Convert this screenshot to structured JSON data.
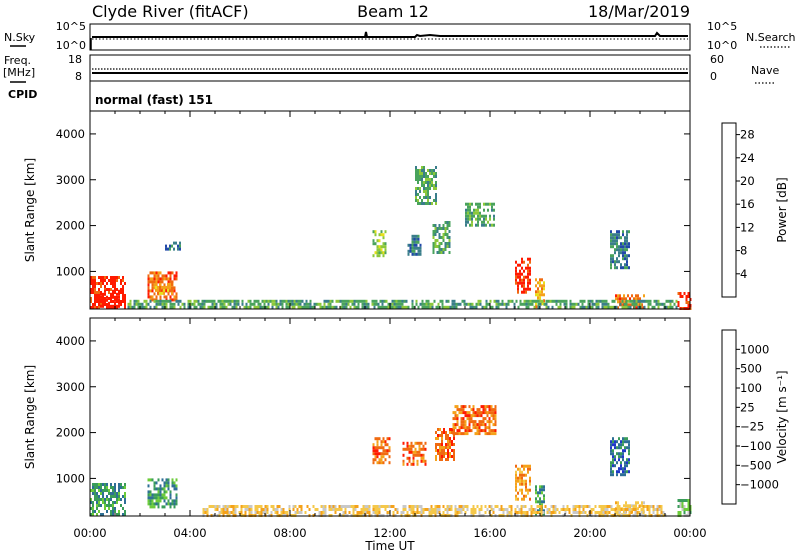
{
  "header": {
    "station": "Clyde River (fitACF)",
    "beam": "Beam 12",
    "date": "18/Mar/2019",
    "mode": "normal (fast) 151"
  },
  "side_labels": {
    "n_sky": "N.Sky",
    "n_search": "N.Search",
    "freq_line1": "Freq.",
    "freq_line2": "[MHz]",
    "cpid": "CPID",
    "nave": "Nave"
  },
  "aux_panel_ticks": {
    "sky_left": [
      "10^5",
      "10^0"
    ],
    "search_right": [
      "10^5",
      "10^0"
    ],
    "freq_left": [
      "18",
      "8"
    ],
    "nave_right": [
      "60",
      "0"
    ]
  },
  "chart_data": [
    {
      "type": "heatmap",
      "name": "power-panel",
      "title": "",
      "xlabel": "Time UT",
      "ylabel": "Slant Range [km]",
      "x_ticks": [
        "00:00",
        "04:00",
        "08:00",
        "12:00",
        "16:00",
        "20:00",
        "00:00"
      ],
      "x_range_hours": [
        0,
        24
      ],
      "y_ticks": [
        1000,
        2000,
        3000,
        4000
      ],
      "ylim": [
        180,
        4500
      ],
      "colorbar": {
        "label": "Power [dB]",
        "ticks": [
          "4",
          "8",
          "12",
          "16",
          "20",
          "24",
          "28"
        ],
        "range": [
          0,
          30
        ],
        "colors": [
          "#1414ff",
          "#2048a8",
          "#3a7e8a",
          "#49a35c",
          "#8cc83a",
          "#e8e01a",
          "#f5a21a",
          "#f06a10",
          "#ff1a00"
        ]
      },
      "regions": [
        {
          "t0": 0.0,
          "t1": 1.4,
          "r0": 220,
          "r1": 900,
          "level": 8
        },
        {
          "t0": 0.4,
          "t1": 1.2,
          "r0": 220,
          "r1": 600,
          "level": 9
        },
        {
          "t0": 2.3,
          "t1": 3.5,
          "r0": 350,
          "r1": 1000,
          "level": 7
        },
        {
          "t0": 2.6,
          "t1": 3.3,
          "r0": 500,
          "r1": 750,
          "level": 6
        },
        {
          "t0": 3.0,
          "t1": 3.6,
          "r0": 1500,
          "r1": 1650,
          "level": 2
        },
        {
          "t0": 11.3,
          "t1": 11.8,
          "r0": 1350,
          "r1": 1900,
          "level": 4
        },
        {
          "t0": 12.7,
          "t1": 13.2,
          "r0": 1400,
          "r1": 1800,
          "level": 2
        },
        {
          "t0": 13.0,
          "t1": 13.8,
          "r0": 2500,
          "r1": 3300,
          "level": 3
        },
        {
          "t0": 13.7,
          "t1": 14.4,
          "r0": 1400,
          "r1": 2100,
          "level": 3
        },
        {
          "t0": 15.0,
          "t1": 16.2,
          "r0": 2000,
          "r1": 2500,
          "level": 3
        },
        {
          "t0": 17.0,
          "t1": 17.6,
          "r0": 550,
          "r1": 1300,
          "level": 8
        },
        {
          "t0": 17.8,
          "t1": 18.2,
          "r0": 250,
          "r1": 850,
          "level": 6
        },
        {
          "t0": 20.8,
          "t1": 21.6,
          "r0": 1100,
          "r1": 1900,
          "level": 2
        },
        {
          "t0": 21.0,
          "t1": 22.2,
          "r0": 220,
          "r1": 500,
          "level": 7
        },
        {
          "t0": 23.5,
          "t1": 24.0,
          "r0": 220,
          "r1": 550,
          "level": 8
        },
        {
          "t0": 1.5,
          "t1": 23.5,
          "r0": 220,
          "r1": 380,
          "level": 3
        }
      ]
    },
    {
      "type": "heatmap",
      "name": "velocity-panel",
      "title": "",
      "xlabel": "Time UT",
      "ylabel": "Slant Range [km]",
      "x_ticks": [
        "00:00",
        "04:00",
        "08:00",
        "12:00",
        "16:00",
        "20:00",
        "00:00"
      ],
      "x_range_hours": [
        0,
        24
      ],
      "y_ticks": [
        1000,
        2000,
        3000,
        4000
      ],
      "ylim": [
        180,
        4500
      ],
      "colorbar": {
        "label": "Velocity [m s⁻¹]",
        "ticks": [
          "1000",
          "500",
          "100",
          "25",
          "−25",
          "−100",
          "−500",
          "−1000"
        ],
        "colors": [
          "#2138c8",
          "#2e6f96",
          "#3a9c5a",
          "#6ccc3a",
          "#c8c8c8",
          "#f5c84a",
          "#f5a21a",
          "#f06a10",
          "#ff1a00"
        ]
      },
      "regions": [
        {
          "t0": 0.0,
          "t1": 1.4,
          "r0": 220,
          "r1": 900,
          "level": 2
        },
        {
          "t0": 2.3,
          "t1": 3.5,
          "r0": 350,
          "r1": 1000,
          "level": 2
        },
        {
          "t0": 11.3,
          "t1": 12.0,
          "r0": 1350,
          "r1": 1900,
          "level": 7
        },
        {
          "t0": 12.5,
          "t1": 13.4,
          "r0": 1300,
          "r1": 1800,
          "level": 7
        },
        {
          "t0": 13.8,
          "t1": 14.6,
          "r0": 1400,
          "r1": 2100,
          "level": 7
        },
        {
          "t0": 14.5,
          "t1": 16.2,
          "r0": 2000,
          "r1": 2600,
          "level": 7
        },
        {
          "t0": 17.0,
          "t1": 17.6,
          "r0": 550,
          "r1": 1300,
          "level": 6
        },
        {
          "t0": 17.8,
          "t1": 18.2,
          "r0": 250,
          "r1": 850,
          "level": 2
        },
        {
          "t0": 20.8,
          "t1": 21.6,
          "r0": 1100,
          "r1": 1900,
          "level": 1
        },
        {
          "t0": 21.0,
          "t1": 22.2,
          "r0": 220,
          "r1": 500,
          "level": 5
        },
        {
          "t0": 23.5,
          "t1": 24.0,
          "r0": 220,
          "r1": 550,
          "level": 3
        },
        {
          "t0": 4.5,
          "t1": 23.0,
          "r0": 220,
          "r1": 420,
          "level": 5
        }
      ]
    }
  ]
}
